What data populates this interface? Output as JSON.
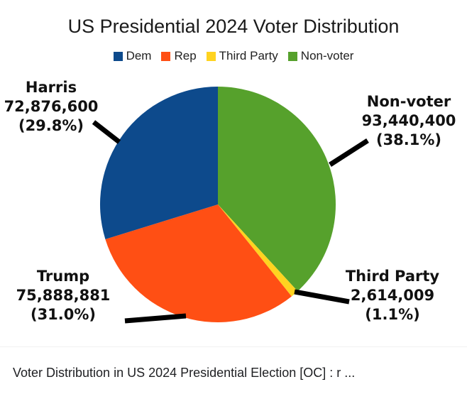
{
  "chart_data": {
    "type": "pie",
    "title": "US Presidential 2024 Voter Distribution",
    "legend_position": "top",
    "legend": [
      {
        "label": "Dem",
        "color": "#0d4a8c"
      },
      {
        "label": "Rep",
        "color": "#ff4f14"
      },
      {
        "label": "Third Party",
        "color": "#ffd320"
      },
      {
        "label": "Non-voter",
        "color": "#56a12c"
      }
    ],
    "slices": [
      {
        "category": "Non-voter",
        "name": "Non-voter",
        "value": 93440400,
        "value_label": "93,440,400",
        "percent_label": "(38.1%)",
        "color": "#56a12c"
      },
      {
        "category": "Third Party",
        "name": "Third Party",
        "value": 2614009,
        "value_label": "2,614,009",
        "percent_label": "(1.1%)",
        "color": "#ffd320"
      },
      {
        "category": "Rep",
        "name": "Trump",
        "value": 75888881,
        "value_label": "75,888,881",
        "percent_label": "(31.0%)",
        "color": "#ff4f14"
      },
      {
        "category": "Dem",
        "name": "Harris",
        "value": 72876600,
        "value_label": "72,876,600",
        "percent_label": "(29.8%)",
        "color": "#0d4a8c"
      }
    ]
  },
  "caption": "Voter Distribution in US 2024 Presidential Election [OC] : r ..."
}
